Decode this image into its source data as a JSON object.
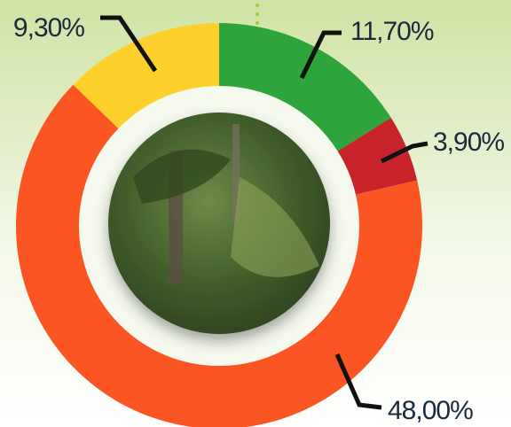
{
  "chart_data": {
    "type": "donut",
    "values": [
      11.7,
      3.9,
      48.0,
      9.3
    ],
    "value_labels": [
      "11,70%",
      "3,90%",
      "48,00%",
      "9,30%"
    ],
    "colors": [
      "#2ea43c",
      "#c8232a",
      "#fa5522",
      "#fdd02c"
    ]
  }
}
